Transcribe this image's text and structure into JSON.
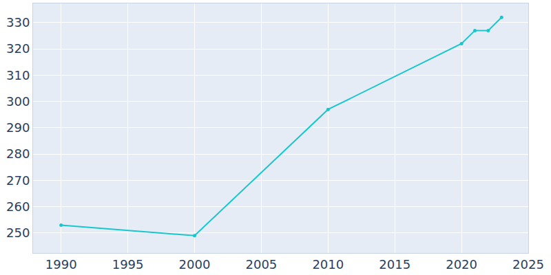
{
  "chart_data": {
    "type": "line",
    "x": [
      1990,
      2000,
      2010,
      2020,
      2021,
      2022,
      2023
    ],
    "values": [
      253,
      249,
      297,
      322,
      327,
      327,
      332
    ],
    "color": "#17c7cc",
    "marker": "circle",
    "xlim": [
      1987.9,
      2025
    ],
    "xticks": [
      1990,
      1995,
      2000,
      2005,
      2010,
      2015,
      2020,
      2025
    ],
    "ylim": [
      242.4,
      337.3
    ],
    "yticks": [
      250,
      260,
      270,
      280,
      290,
      300,
      310,
      320,
      330
    ],
    "grid": true
  }
}
